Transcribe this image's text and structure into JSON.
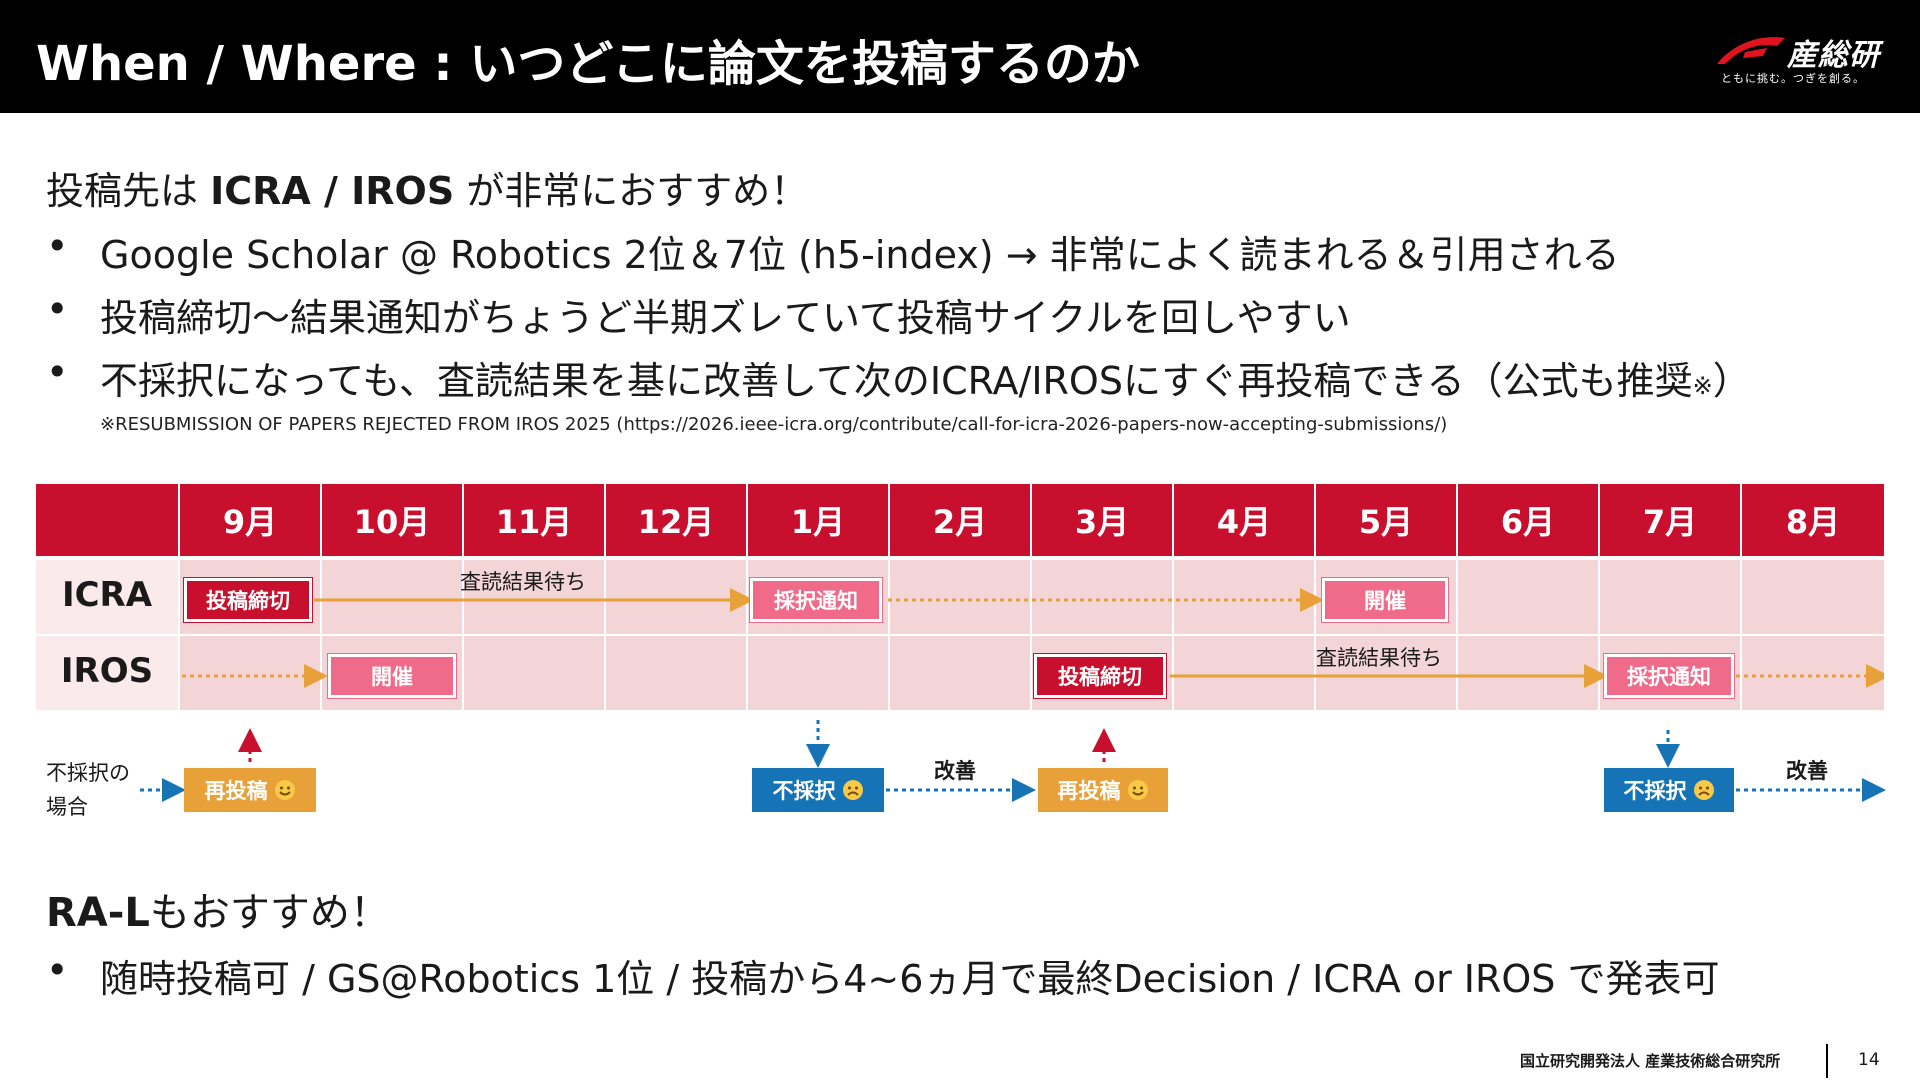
{
  "header": {
    "title": "When / Where : いつどこに論文を投稿するのか",
    "logo_text": "産総研",
    "logo_tagline": "ともに挑む。つぎを創る。"
  },
  "intro": {
    "prefix": "投稿先は ",
    "bold": "ICRA / IROS",
    "suffix": " が非常におすすめ！"
  },
  "bullets": [
    {
      "dot": "•",
      "text": "Google Scholar @ Robotics 2位＆7位 (h5-index) → 非常によく読まれる＆引用される"
    },
    {
      "dot": "•",
      "text": "投稿締切～結果通知がちょうど半期ズレていて投稿サイクルを回しやすい"
    },
    {
      "dot": "•",
      "text": "不採択になっても、査読結果を基に改善して次のICRA/IROSにすぐ再投稿できる（公式も推奨",
      "mark": "※",
      "tail": "）"
    }
  ],
  "footnote": "※RESUBMISSION OF PAPERS REJECTED FROM IROS 2025 (https://2026.ieee-icra.org/contribute/call-for-icra-2026-papers-now-accepting-submissions/)",
  "timeline": {
    "months": [
      "9月",
      "10月",
      "11月",
      "12月",
      "1月",
      "2月",
      "3月",
      "4月",
      "5月",
      "6月",
      "7月",
      "8月"
    ],
    "rows": [
      {
        "label": "ICRA",
        "deadline": "投稿締切",
        "review": "査読結果待ち",
        "notify": "採択通知",
        "event": "開催"
      },
      {
        "label": "IROS",
        "deadline": "投稿締切",
        "review": "査読結果待ち",
        "notify": "採択通知",
        "event": "開催"
      }
    ],
    "reject_case": "不採択の\n場合",
    "resubmit": "再投稿",
    "rejected": "不採択",
    "improve": "改善",
    "colors": {
      "red": "#c8102e",
      "pink": "#f06b8a",
      "orange": "#e8a038",
      "blue": "#1573b6"
    }
  },
  "ral": {
    "bold": "RA-L",
    "suffix": "もおすすめ！",
    "bullet_dot": "•",
    "bullet": "随時投稿可 / GS@Robotics 1位 / 投稿から4~6ヵ月で最終Decision / ICRA or IROS で発表可"
  },
  "footer": {
    "org": "国立研究開発法人 産業技術総合研究所",
    "page": "14"
  }
}
